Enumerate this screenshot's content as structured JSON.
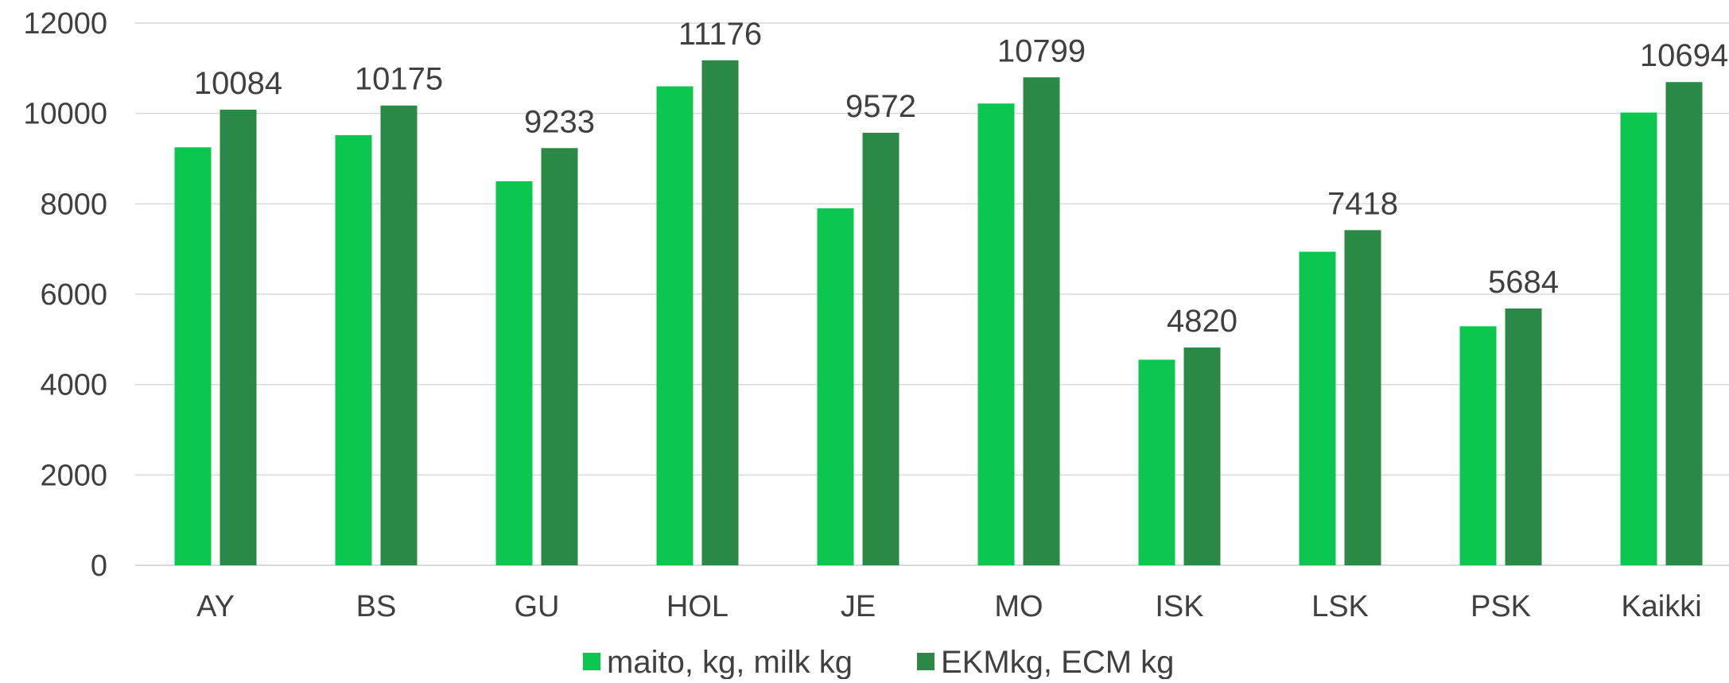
{
  "chart_data": {
    "type": "bar",
    "title": "",
    "xlabel": "",
    "ylabel": "",
    "ylim": [
      0,
      12000
    ],
    "yticks": [
      0,
      2000,
      4000,
      6000,
      8000,
      10000,
      12000
    ],
    "grid": true,
    "legend_position": "bottom",
    "categories": [
      "AY",
      "BS",
      "GU",
      "HOL",
      "JE",
      "MO",
      "ISK",
      "LSK",
      "PSK",
      "Kaikki"
    ],
    "series": [
      {
        "name": "maito, kg, milk kg",
        "color": "#0BC74F",
        "values": [
          9250,
          9520,
          8500,
          10600,
          7900,
          10220,
          4550,
          6940,
          5290,
          10020
        ],
        "show_labels": false
      },
      {
        "name": "EKMkg, ECM kg",
        "color": "#2A8A45",
        "values": [
          10084,
          10175,
          9233,
          11176,
          9572,
          10799,
          4820,
          7418,
          5684,
          10694
        ],
        "show_labels": true
      }
    ],
    "gridline_color": "#d9d9d9"
  }
}
